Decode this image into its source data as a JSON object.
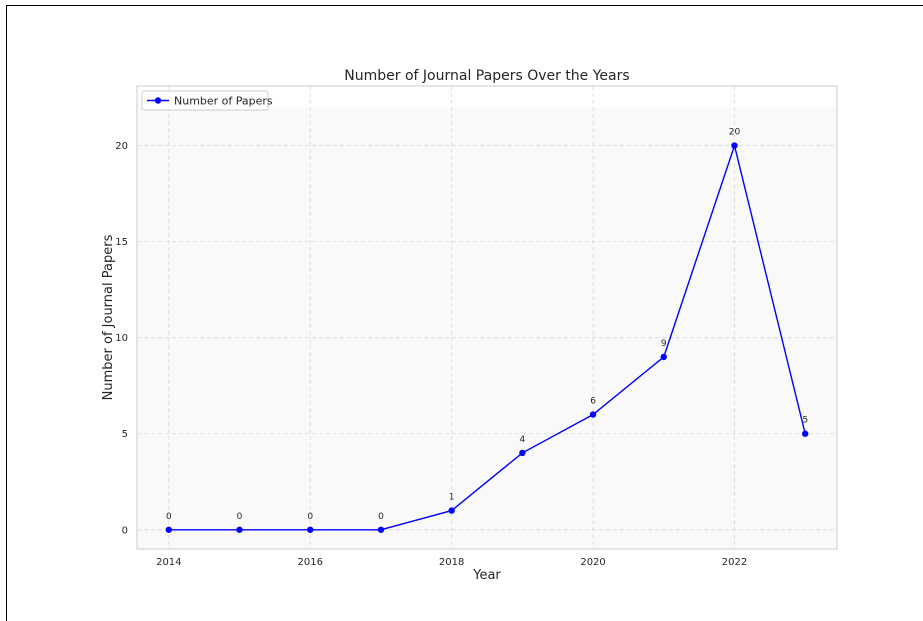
{
  "chart_data": {
    "type": "line",
    "title": "Number of Journal Papers Over the Years",
    "xlabel": "Year",
    "ylabel": "Number of Journal Papers",
    "x": [
      2014,
      2015,
      2016,
      2017,
      2018,
      2019,
      2020,
      2021,
      2022,
      2023
    ],
    "series": [
      {
        "name": "Number of Papers",
        "values": [
          0,
          0,
          0,
          0,
          1,
          4,
          6,
          9,
          20,
          5
        ],
        "color": "#0000ff"
      }
    ],
    "data_labels": [
      "0",
      "0",
      "0",
      "0",
      "1",
      "4",
      "6",
      "9",
      "20",
      "5"
    ],
    "xticks": [
      2014,
      2016,
      2018,
      2020,
      2022
    ],
    "xtick_labels": [
      "2014",
      "2016",
      "2018",
      "2020",
      "2022"
    ],
    "yticks": [
      0,
      5,
      10,
      15,
      20
    ],
    "ytick_labels": [
      "0",
      "5",
      "10",
      "15",
      "20"
    ],
    "xlim": [
      2013.55,
      2023.45
    ],
    "ylim": [
      -1.0,
      23.1
    ],
    "shaded_band_ylim": [
      -1.0,
      22.0
    ],
    "grid": true,
    "legend_position": "top-left",
    "colors": {
      "line": "#0000ff",
      "grid": "#d9d9d9",
      "band": "#f9f9f9",
      "spine": "#cccccc"
    }
  }
}
